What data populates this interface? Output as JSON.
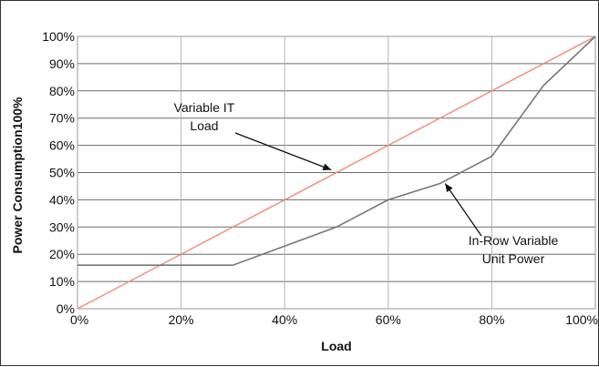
{
  "chart_data": {
    "type": "line",
    "title": "",
    "xlabel": "Load",
    "ylabel": "Power Consumption100%",
    "xlim": [
      0,
      100
    ],
    "ylim": [
      0,
      100
    ],
    "x_ticks": [
      "0%",
      "20%",
      "40%",
      "60%",
      "80%",
      "100%"
    ],
    "y_ticks": [
      "0%",
      "10%",
      "20%",
      "30%",
      "40%",
      "50%",
      "60%",
      "70%",
      "80%",
      "90%",
      "100%"
    ],
    "grid": true,
    "series": [
      {
        "color": "#f08a7a",
        "points": [
          [
            0,
            0
          ],
          [
            100,
            100
          ]
        ]
      },
      {
        "color": "#777777",
        "points": [
          [
            0,
            16
          ],
          [
            10,
            16
          ],
          [
            20,
            16
          ],
          [
            30,
            16
          ],
          [
            40,
            23
          ],
          [
            50,
            30
          ],
          [
            60,
            40
          ],
          [
            70,
            46
          ],
          [
            80,
            56
          ],
          [
            90,
            82
          ],
          [
            100,
            100
          ]
        ]
      }
    ],
    "annotations": [
      {
        "lines": [
          "Variable IT",
          "Load"
        ],
        "target": [
          49,
          51
        ]
      },
      {
        "lines": [
          "In-Row Variable",
          "Unit Power"
        ],
        "target": [
          71,
          46
        ]
      }
    ]
  }
}
